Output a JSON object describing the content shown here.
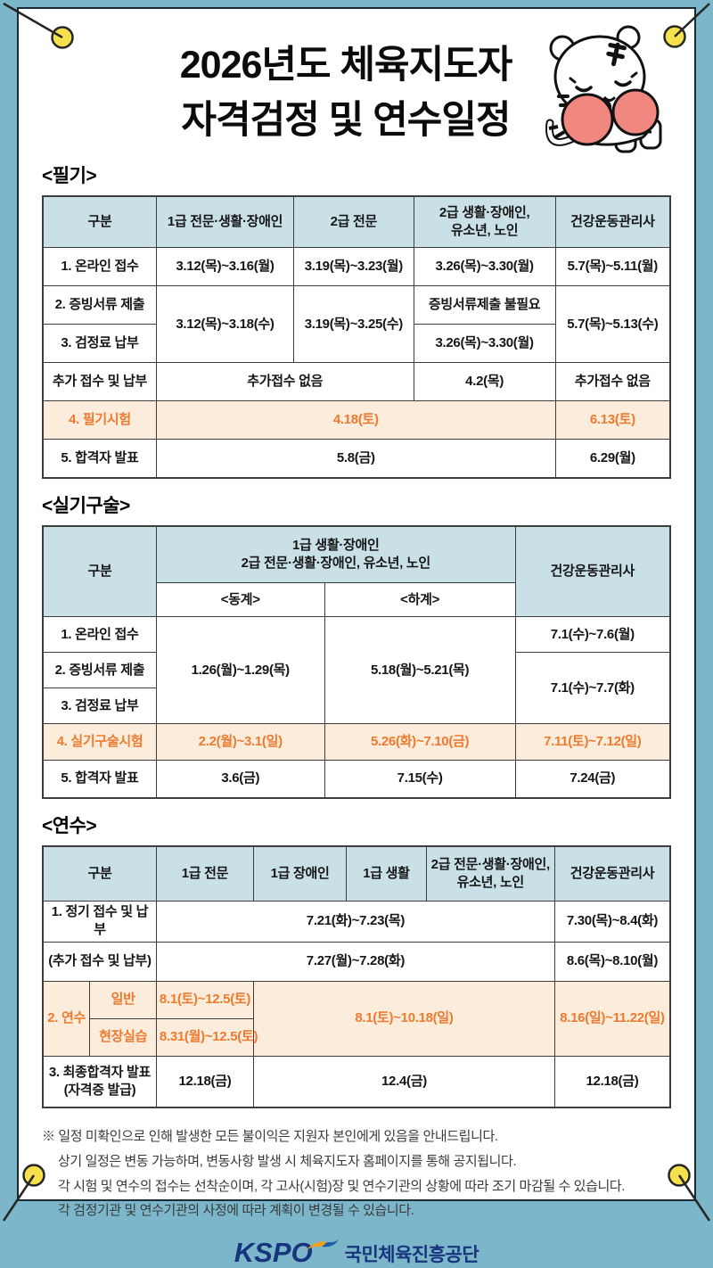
{
  "page": {
    "title_line1": "2026년도 체육지도자",
    "title_line2": "자격검정 및 연수일정"
  },
  "colors": {
    "wall_blue": "#7cb6ca",
    "header_cell_blue": "#c9e0e7",
    "highlight_bg": "#fcecdb",
    "highlight_text": "#ee7a2f",
    "pin_yellow": "#f6e04d",
    "logo_navy": "#17357d"
  },
  "sections": [
    {
      "heading": "<필기>",
      "table": {
        "col_widths": [
          18.1,
          21.9,
          19.1,
          22.6,
          18.3
        ],
        "rows": [
          {
            "h": 58,
            "cells": [
              {
                "t": "구분",
                "c": "hd"
              },
              {
                "t": "1급 전문·생활·장애인",
                "c": "hd"
              },
              {
                "t": "2급 전문",
                "c": "hd"
              },
              {
                "t": "2급 생활·장애인,\n유소년, 노인",
                "c": "hd"
              },
              {
                "t": "건강운동관리사",
                "c": "hd"
              }
            ]
          },
          {
            "h": 43,
            "cells": [
              {
                "t": "1. 온라인 접수"
              },
              {
                "t": "3.12(목)~3.16(월)"
              },
              {
                "t": "3.19(목)~3.23(월)"
              },
              {
                "t": "3.26(목)~3.30(월)"
              },
              {
                "t": "5.7(목)~5.11(월)"
              }
            ]
          },
          {
            "h": 43,
            "cells": [
              {
                "t": "2. 증빙서류 제출"
              },
              {
                "t": "3.12(목)~3.18(수)",
                "rs": 2
              },
              {
                "t": "3.19(목)~3.25(수)",
                "rs": 2
              },
              {
                "t": "증빙서류제출 불필요"
              },
              {
                "t": "5.7(목)~5.13(수)",
                "rs": 2
              }
            ]
          },
          {
            "h": 43,
            "cells": [
              {
                "t": "3. 검정료 납부"
              },
              {
                "t": "3.26(목)~3.30(월)"
              }
            ]
          },
          {
            "h": 43,
            "cells": [
              {
                "t": "추가 접수 및 납부"
              },
              {
                "t": "추가접수 없음",
                "cs": 2
              },
              {
                "t": "4.2(목)"
              },
              {
                "t": "추가접수 없음"
              }
            ]
          },
          {
            "h": 43,
            "hl": true,
            "cells": [
              {
                "t": "4. 필기시험"
              },
              {
                "t": "4.18(토)",
                "cs": 3
              },
              {
                "t": "6.13(토)"
              }
            ]
          },
          {
            "h": 43,
            "cells": [
              {
                "t": "5. 합격자 발표"
              },
              {
                "t": "5.8(금)",
                "cs": 3
              },
              {
                "t": "6.29(월)"
              }
            ]
          }
        ]
      }
    },
    {
      "heading": "<실기구술>",
      "table": {
        "col_widths": [
          18.1,
          26.8,
          30.4,
          24.7
        ],
        "rows": [
          {
            "h": 64,
            "cells": [
              {
                "t": "구분",
                "c": "hd",
                "rs": 2
              },
              {
                "t": "1급 생활·장애인\n2급 전문·생활·장애인, 유소년, 노인",
                "c": "hd",
                "cs": 2
              },
              {
                "t": "건강운동관리사",
                "c": "hd",
                "rs": 2
              }
            ]
          },
          {
            "h": 38,
            "cells": [
              {
                "t": "<동계>",
                "c": "sub"
              },
              {
                "t": "<하계>",
                "c": "sub"
              }
            ]
          },
          {
            "h": 40,
            "cells": [
              {
                "t": "1. 온라인 접수"
              },
              {
                "t": "1.26(월)~1.29(목)",
                "rs": 3
              },
              {
                "t": "5.18(월)~5.21(목)",
                "rs": 3
              },
              {
                "t": "7.1(수)~7.6(월)"
              }
            ]
          },
          {
            "h": 40,
            "cells": [
              {
                "t": "2. 증빙서류 제출"
              },
              {
                "t": "7.1(수)~7.7(화)",
                "rs": 2
              }
            ]
          },
          {
            "h": 40,
            "cells": [
              {
                "t": "3. 검정료 납부"
              }
            ]
          },
          {
            "h": 41,
            "hl": true,
            "cells": [
              {
                "t": "4. 실기구술시험"
              },
              {
                "t": "2.2(월)~3.1(일)"
              },
              {
                "t": "5.26(화)~7.10(금)"
              },
              {
                "t": "7.11(토)~7.12(일)"
              }
            ]
          },
          {
            "h": 42,
            "cells": [
              {
                "t": "5. 합격자 발표"
              },
              {
                "t": "3.6(금)"
              },
              {
                "t": "7.15(수)"
              },
              {
                "t": "7.24(금)"
              }
            ]
          }
        ]
      }
    },
    {
      "heading": "<연수>",
      "table": {
        "col_widths": [
          7.5,
          10.6,
          15.5,
          14.8,
          12.7,
          20.5,
          18.4
        ],
        "rows": [
          {
            "h": 62,
            "cells": [
              {
                "t": "구분",
                "c": "hd",
                "cs": 2
              },
              {
                "t": "1급 전문",
                "c": "hd"
              },
              {
                "t": "1급 장애인",
                "c": "hd"
              },
              {
                "t": "1급 생활",
                "c": "hd"
              },
              {
                "t": "2급 전문·생활·장애인,\n유소년, 노인",
                "c": "hd"
              },
              {
                "t": "건강운동관리사",
                "c": "hd"
              }
            ]
          },
          {
            "h": 44,
            "cells": [
              {
                "t": "1. 정기 접수 및 납부",
                "cs": 2
              },
              {
                "t": "7.21(화)~7.23(목)",
                "cs": 4
              },
              {
                "t": "7.30(목)~8.4(화)"
              }
            ]
          },
          {
            "h": 44,
            "cells": [
              {
                "t": "(추가 접수 및 납부)",
                "cs": 2
              },
              {
                "t": "7.27(월)~7.28(화)",
                "cs": 4
              },
              {
                "t": "8.6(목)~8.10(월)"
              }
            ]
          },
          {
            "h": 42,
            "hl": true,
            "cells": [
              {
                "t": "2. 연수",
                "rs": 2
              },
              {
                "t": "일반"
              },
              {
                "t": "8.1(토)~12.5(토)"
              },
              {
                "t": "8.1(토)~10.18(일)",
                "cs": 3,
                "rs": 2
              },
              {
                "t": "8.16(일)~11.22(일)",
                "rs": 2
              }
            ]
          },
          {
            "h": 42,
            "hl": true,
            "cells": [
              {
                "t": "현장실습"
              },
              {
                "t": "8.31(월)~12.5(토)"
              }
            ]
          },
          {
            "h": 58,
            "cells": [
              {
                "t": "3. 최종합격자 발표\n(자격증 발급)",
                "cs": 2
              },
              {
                "t": "12.18(금)"
              },
              {
                "t": "12.4(금)",
                "cs": 3
              },
              {
                "t": "12.18(금)"
              }
            ]
          }
        ]
      }
    }
  ],
  "footnotes": [
    "※ 일정 미확인으로 인해 발생한 모든 불이익은 지원자 본인에게 있음을 안내드립니다.",
    "상기 일정은 변동 가능하며, 변동사항 발생 시 체육지도자 홈페이지를 통해 공지됩니다.",
    "각 시험 및 연수의 접수는 선착순이며, 각 고사(시험)장 및 연수기관의 상황에 따라 조기 마감될 수 있습니다.",
    "각 검정기관 및 연수기관의 사정에 따라 계획이 변경될 수 있습니다."
  ],
  "logo": {
    "kspo": "KSPO",
    "org": "국민체육진흥공단"
  }
}
